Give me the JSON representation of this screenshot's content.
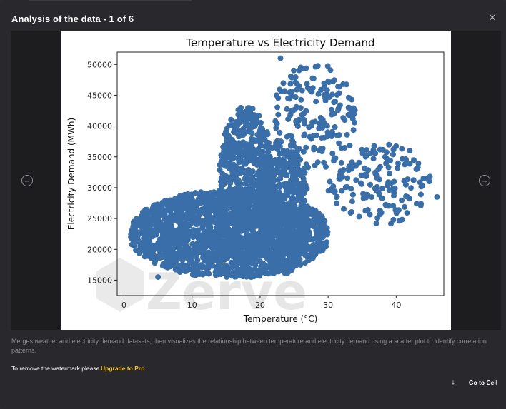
{
  "modal": {
    "title": "Analysis of the data - 1 of 6",
    "close_icon": "close-icon",
    "prev_icon": "arrow-left-circle-icon",
    "next_icon": "arrow-right-circle-icon"
  },
  "description": "Merges weather and electricity demand datasets, then visualizes the relationship between temperature and electricity demand using a scatter plot to identify correlation patterns.",
  "footer": {
    "watermark_note": "To remove the watermark please",
    "upgrade_label": "Upgrade to Pro",
    "download_icon": "download-icon",
    "goto_label": "Go to Cell"
  },
  "watermark": {
    "text": "Zerve"
  },
  "colors": {
    "point": "#3a6ea8",
    "accent": "#f2c230",
    "background": "#28282d"
  },
  "chart_data": {
    "type": "scatter",
    "title": "Temperature vs Electricity Demand",
    "xlabel": "Temperature (°C)",
    "ylabel": "Electricity Demand (MWh)",
    "xlim": [
      -1,
      47
    ],
    "ylim": [
      12500,
      52000
    ],
    "xticks": [
      0,
      10,
      20,
      30,
      40
    ],
    "yticks": [
      15000,
      20000,
      25000,
      30000,
      35000,
      40000,
      45000,
      50000
    ],
    "grid": false,
    "series": [
      {
        "color": "#3a6ea8",
        "clusters": [
          {
            "x": [
              1,
              30
            ],
            "y": [
              15500,
              29500
            ],
            "n": 1800
          },
          {
            "x": [
              14,
              22
            ],
            "y": [
              18000,
              43000
            ],
            "n": 700
          },
          {
            "x": [
              20,
              27
            ],
            "y": [
              16000,
              38000
            ],
            "n": 500
          },
          {
            "x": [
              22,
              34
            ],
            "y": [
              33000,
              50000
            ],
            "n": 180
          },
          {
            "x": [
              30,
              45
            ],
            "y": [
              24000,
              37000
            ],
            "n": 160
          }
        ],
        "outliers": [
          [
            23,
            51000
          ],
          [
            46,
            28500
          ],
          [
            42,
            36000
          ],
          [
            44,
            31500
          ],
          [
            43,
            33000
          ],
          [
            5,
            15500
          ]
        ]
      }
    ]
  }
}
